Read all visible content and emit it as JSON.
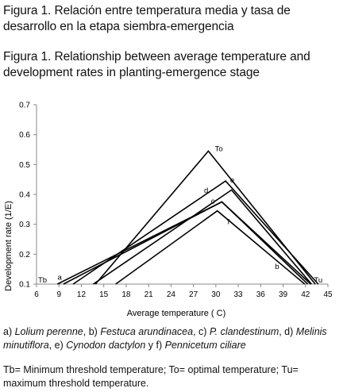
{
  "caption_es": "Figura 1. Relación entre temperatura media y tasa de desarrollo en la etapa siembra-emergencia",
  "caption_en": "Figura 1. Relationship between average temperature and development rates in planting-emergence stage",
  "legend_parts": [
    {
      "t": "a) ",
      "i": false
    },
    {
      "t": "Lolium perenne",
      "i": true
    },
    {
      "t": ", b) ",
      "i": false
    },
    {
      "t": "Festuca arundinacea",
      "i": true
    },
    {
      "t": ", c) ",
      "i": false
    },
    {
      "t": "P. clandestinum",
      "i": true
    },
    {
      "t": ", d) ",
      "i": false
    },
    {
      "t": "Melinis minutiflora",
      "i": true
    },
    {
      "t": ", e) ",
      "i": false
    },
    {
      "t": "Cynodon dactylon",
      "i": true
    },
    {
      "t": " y f) ",
      "i": false
    },
    {
      "t": "Pennicetum ciliare",
      "i": true
    }
  ],
  "notes": "Tb= Minimum threshold temperature; To= optimal temperature; Tu= maximum threshold temperature.",
  "chart_data": {
    "type": "line",
    "title": "",
    "xlabel": "Average temperature ( C)",
    "ylabel": "Development rate (1/E)",
    "xlim": [
      6,
      45
    ],
    "ylim": [
      0.1,
      0.7
    ],
    "xticks": [
      6,
      9,
      12,
      15,
      18,
      21,
      24,
      27,
      30,
      33,
      36,
      39,
      42,
      45
    ],
    "yticks": [
      0.1,
      0.2,
      0.3,
      0.4,
      0.5,
      0.6,
      0.7
    ],
    "grid": false,
    "line_color": "#000000",
    "series": [
      {
        "name": "a",
        "x": [
          8.8,
          30.8,
          42.7
        ],
        "y": [
          0.1,
          0.375,
          0.1
        ]
      },
      {
        "name": "b",
        "x": [
          9.6,
          30.8,
          42.3
        ],
        "y": [
          0.1,
          0.375,
          0.1
        ]
      },
      {
        "name": "c",
        "x": [
          13.6,
          32.1,
          42.8
        ],
        "y": [
          0.1,
          0.415,
          0.1
        ]
      },
      {
        "name": "d",
        "x": [
          10.9,
          31.3,
          43.7
        ],
        "y": [
          0.1,
          0.445,
          0.1
        ]
      },
      {
        "name": "e",
        "x": [
          13.9,
          29.0,
          43.3
        ],
        "y": [
          0.1,
          0.545,
          0.1
        ]
      },
      {
        "name": "f",
        "x": [
          16.6,
          30.2,
          41.9
        ],
        "y": [
          0.1,
          0.345,
          0.1
        ]
      }
    ],
    "annotations": [
      {
        "text": "To",
        "x": 30.4,
        "y": 0.545
      },
      {
        "text": "e",
        "x": 32.2,
        "y": 0.44
      },
      {
        "text": "d",
        "x": 28.7,
        "y": 0.405
      },
      {
        "text": "c",
        "x": 29.6,
        "y": 0.37
      },
      {
        "text": "f",
        "x": 31.7,
        "y": 0.3
      },
      {
        "text": "b",
        "x": 38.2,
        "y": 0.15
      },
      {
        "text": "a",
        "x": 9.1,
        "y": 0.115
      },
      {
        "text": "Tb",
        "x": 6.8,
        "y": 0.105
      },
      {
        "text": "Tu",
        "x": 43.7,
        "y": 0.105
      }
    ]
  }
}
